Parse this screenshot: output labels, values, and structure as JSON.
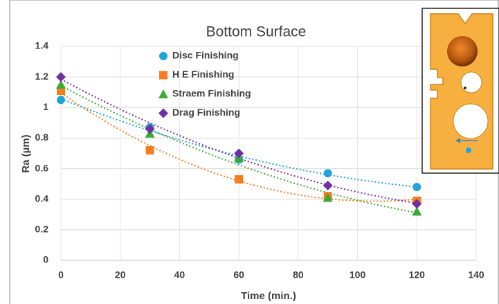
{
  "chart_data": {
    "type": "scatter",
    "title": "Bottom Surface",
    "x_label": "Time (min.)",
    "y_label": "Ra (µm)",
    "x": [
      0,
      30,
      60,
      90,
      120
    ],
    "series": [
      {
        "name": "Disc Finishing",
        "color": "#21a3dc",
        "marker": "circle",
        "values": [
          1.05,
          0.87,
          0.66,
          0.57,
          0.48
        ]
      },
      {
        "name": "H E Finishing",
        "color": "#f57c20",
        "marker": "square",
        "values": [
          1.11,
          0.72,
          0.53,
          0.42,
          0.39
        ]
      },
      {
        "name": "Straem Finishing",
        "color": "#3aaa35",
        "marker": "triangle",
        "values": [
          1.15,
          0.83,
          0.67,
          0.41,
          0.32
        ]
      },
      {
        "name": "Drag Finishing",
        "color": "#7030a0",
        "marker": "diamond",
        "values": [
          1.2,
          0.86,
          0.7,
          0.49,
          0.37
        ]
      }
    ],
    "trendline": "polynomial",
    "trendline_order": 2,
    "xlim": [
      0,
      140
    ],
    "xticks": [
      0,
      20,
      40,
      60,
      80,
      100,
      120,
      140
    ],
    "ylim": [
      0,
      1.4
    ],
    "yticks": [
      0,
      0.2,
      0.4,
      0.6,
      0.8,
      1,
      1.2,
      1.4
    ],
    "grid": true
  }
}
